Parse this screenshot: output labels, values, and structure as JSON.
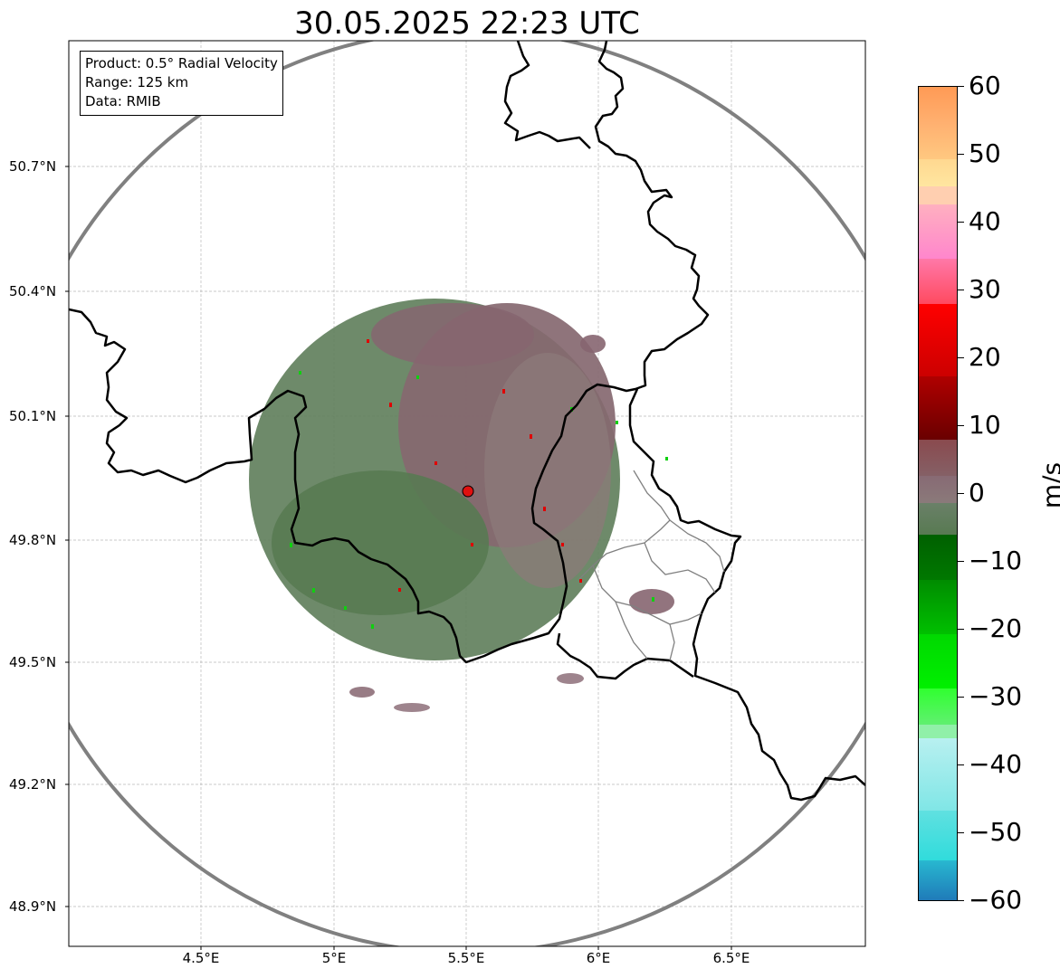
{
  "title": "30.05.2025 22:23 UTC",
  "info": {
    "product": "Product: 0.5° Radial Velocity",
    "range": "Range: 125 km",
    "data": "Data: RMIB"
  },
  "lat_labels": [
    "50.7°N",
    "50.4°N",
    "50.1°N",
    "49.8°N",
    "49.5°N",
    "49.2°N",
    "48.9°N"
  ],
  "lon_labels": [
    "4.5°E",
    "5°E",
    "5.5°E",
    "6°E",
    "6.5°E"
  ],
  "colorbar": {
    "unit": "m/s",
    "min": -60,
    "max": 60,
    "ticks": [
      "60",
      "50",
      "40",
      "30",
      "20",
      "10",
      "0",
      "−10",
      "−20",
      "−30",
      "−40",
      "−50",
      "−60"
    ]
  },
  "colors": {
    "border": "#000000",
    "range_ring": "#808080",
    "radar_site": "#e01010",
    "echo_negative": "#5e7d5a",
    "echo_positive": "#866570"
  }
}
